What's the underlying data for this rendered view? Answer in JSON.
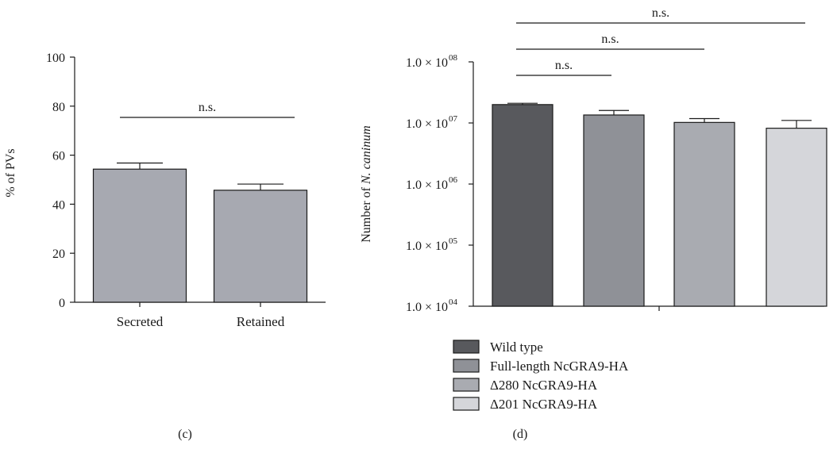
{
  "panels": {
    "c": {
      "caption": "(c)"
    },
    "d": {
      "caption": "(d)"
    }
  },
  "chart_data": [
    {
      "type": "bar",
      "panel": "(c)",
      "ylabel": "% of PVs",
      "xlabel": "",
      "ylim": [
        0,
        100
      ],
      "yticks": [
        0,
        20,
        40,
        60,
        80,
        100
      ],
      "categories": [
        "Secreted",
        "Retained"
      ],
      "values": [
        54.3,
        45.7
      ],
      "errors": [
        2.5,
        2.5
      ],
      "bar_color": "#a7a9b1",
      "annotations": [
        {
          "from": "Secreted",
          "to": "Retained",
          "text": "n.s."
        }
      ]
    },
    {
      "type": "bar",
      "panel": "(d)",
      "ylabel_prefix": "Number of ",
      "ylabel_italic": "N. caninum",
      "xlabel": "",
      "yscale": "log",
      "ylim": [
        10000,
        100000000
      ],
      "ytick_labels": [
        "1.0 × 10",
        "1.0 × 10",
        "1.0 × 10",
        "1.0 × 10",
        "1.0 × 10"
      ],
      "ytick_exponents": [
        "04",
        "05",
        "06",
        "07",
        "08"
      ],
      "categories": [
        "Wild type",
        "Full-length NcGRA9-HA",
        "Δ280 NcGRA9-HA",
        "Δ201 NcGRA9-HA"
      ],
      "values": [
        20000000,
        13500000,
        10200000,
        8200000
      ],
      "error_tops": [
        21000000,
        16000000,
        11800000,
        11000000
      ],
      "colors": [
        "#58595d",
        "#8f9197",
        "#a9abb1",
        "#d5d6da"
      ],
      "annotations": [
        {
          "from": "Wild type",
          "to": "Full-length NcGRA9-HA",
          "text": "n.s."
        },
        {
          "from": "Wild type",
          "to": "Δ280 NcGRA9-HA",
          "text": "n.s."
        },
        {
          "from": "Wild type",
          "to": "Δ201 NcGRA9-HA",
          "text": "n.s."
        }
      ],
      "legend": {
        "entries": [
          "Wild type",
          "Full-length NcGRA9-HA",
          "Δ280 NcGRA9-HA",
          "Δ201 NcGRA9-HA"
        ],
        "placement": "bottom"
      }
    }
  ]
}
